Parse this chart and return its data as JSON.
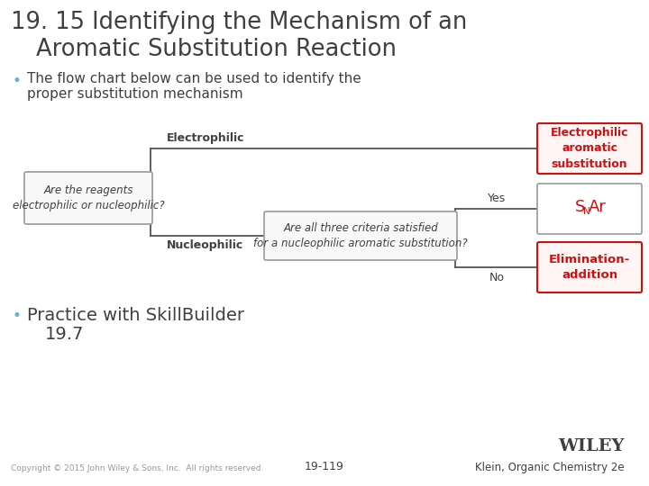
{
  "title_line1": "19. 15 Identifying the Mechanism of an",
  "title_line2": "Aromatic Substitution Reaction",
  "bullet1_line1": "The flow chart below can be used to identify the",
  "bullet1_line2": "proper substitution mechanism",
  "bullet2_line1": "Practice with SkillBuilder",
  "bullet2_line2": "19.7",
  "start_box_text": "Are the reagents\nelectrophilic or nucleophilic?",
  "nucleophilic_box_text": "Are all three criteria satisfied\nfor a nucleophilic aromatic substitution?",
  "result1_text": "Electrophilic\naromatic\nsubstitution",
  "result2_text_S": "S",
  "result2_text_N": "N",
  "result2_text_Ar": "Ar",
  "result3_text": "Elimination-\naddition",
  "label_electrophilic": "Electrophilic",
  "label_nucleophilic": "Nucleophilic",
  "label_yes": "Yes",
  "label_no": "No",
  "copyright": "Copyright © 2015 John Wiley & Sons, Inc.  All rights reserved.",
  "page_number": "19-119",
  "publisher": "WILEY",
  "author": "Klein, Organic Chemistry 2e",
  "bg_color": "#ffffff",
  "title_color": "#404040",
  "text_color": "#404040",
  "bullet_color": "#5bb8c4",
  "red_color": "#cc1111",
  "box_border_color": "#999999",
  "red_box_border_color": "#cc1111",
  "line_color": "#555555"
}
